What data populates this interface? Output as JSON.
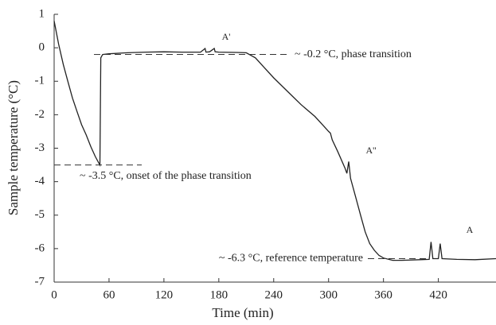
{
  "chart_data": {
    "type": "line",
    "x_label": "Time (min)",
    "y_label": "Sample temperature (°C)",
    "xlim": [
      0,
      483
    ],
    "xticks": [
      0,
      60,
      120,
      180,
      240,
      300,
      360,
      420
    ],
    "ylim": [
      -7,
      1
    ],
    "yticks": [
      -7,
      -6,
      -5,
      -4,
      -3,
      -2,
      -1,
      0,
      1
    ],
    "series": [
      {
        "color": "#222222",
        "x": [
          0,
          5,
          10,
          15,
          20,
          25,
          30,
          35,
          40,
          45,
          49,
          50,
          51,
          53,
          60,
          80,
          100,
          120,
          140,
          160,
          165,
          166,
          170,
          175,
          176,
          180,
          200,
          210,
          220,
          230,
          240,
          255,
          270,
          285,
          295,
          300,
          302,
          304,
          310,
          318,
          320,
          322,
          324,
          330,
          335,
          340,
          345,
          350,
          355,
          360,
          370,
          380,
          400,
          410,
          412,
          414,
          420,
          422,
          424,
          440,
          460,
          483
        ],
        "values": [
          0.8,
          0.1,
          -0.5,
          -1.0,
          -1.5,
          -1.9,
          -2.3,
          -2.6,
          -2.95,
          -3.25,
          -3.45,
          -3.5,
          -0.3,
          -0.2,
          -0.18,
          -0.15,
          -0.13,
          -0.12,
          -0.13,
          -0.13,
          -0.02,
          -0.13,
          -0.12,
          -0.02,
          -0.12,
          -0.13,
          -0.14,
          -0.15,
          -0.3,
          -0.6,
          -0.9,
          -1.3,
          -1.7,
          -2.05,
          -2.35,
          -2.5,
          -2.55,
          -2.75,
          -3.1,
          -3.6,
          -3.75,
          -3.4,
          -3.9,
          -4.5,
          -5.0,
          -5.5,
          -5.85,
          -6.05,
          -6.2,
          -6.28,
          -6.35,
          -6.35,
          -6.33,
          -6.32,
          -5.8,
          -6.3,
          -6.3,
          -5.85,
          -6.3,
          -6.32,
          -6.33,
          -6.3
        ]
      }
    ],
    "reference_lines": [
      {
        "y": -0.2,
        "text": "~ -0.2 °C, phase transition"
      },
      {
        "y": -3.5,
        "text": "~ -3.5 °C, onset of the phase transition"
      },
      {
        "y": -6.3,
        "text": "~ -6.3 °C, reference temperature"
      }
    ],
    "point_labels": [
      "A'",
      "A''",
      "A"
    ]
  }
}
